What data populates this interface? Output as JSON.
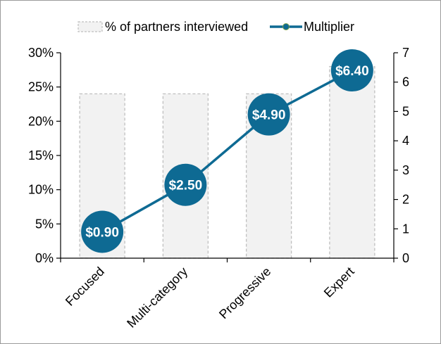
{
  "chart_data": {
    "type": "bar",
    "categories": [
      "Focused",
      "Multi-category",
      "Progressive",
      "Expert"
    ],
    "series": [
      {
        "name": "% of partners interviewed",
        "type": "bar",
        "axis": "left",
        "values": [
          24,
          24,
          24,
          28
        ],
        "color": "#f2f2f2",
        "stroke": "#bfbfbf"
      },
      {
        "name": "Multiplier",
        "type": "line",
        "axis": "right",
        "values": [
          0.9,
          2.5,
          4.9,
          6.4
        ],
        "labels": [
          "$0.90",
          "$2.50",
          "$4.90",
          "$6.40"
        ],
        "color": "#0e6a93"
      }
    ],
    "y_left": {
      "ylim": [
        0,
        30
      ],
      "ticks": [
        "0%",
        "5%",
        "10%",
        "15%",
        "20%",
        "25%",
        "30%"
      ],
      "tick_values": [
        0,
        5,
        10,
        15,
        20,
        25,
        30
      ]
    },
    "y_right": {
      "ylim": [
        0,
        7
      ],
      "ticks": [
        "0",
        "1",
        "2",
        "3",
        "4",
        "5",
        "6",
        "7"
      ],
      "tick_values": [
        0,
        1,
        2,
        3,
        4,
        5,
        6,
        7
      ]
    },
    "legend": {
      "position": "top"
    },
    "grid": false
  }
}
